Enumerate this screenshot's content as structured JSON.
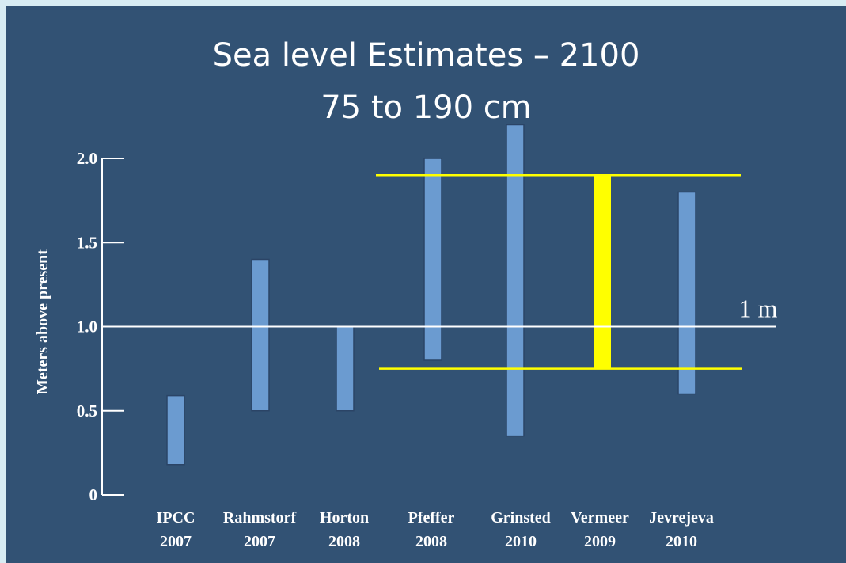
{
  "slide": {
    "title": "Sea level Estimates – 2100",
    "subtitle": "75 to 190 cm"
  },
  "chart_data": {
    "type": "bar",
    "ylabel": "Meters above present",
    "ylim": [
      0,
      2.0
    ],
    "yticks": [
      {
        "value": 0,
        "label": "0"
      },
      {
        "value": 0.5,
        "label": "0.5"
      },
      {
        "value": 1.0,
        "label": "1.0"
      },
      {
        "value": 1.5,
        "label": "1.5"
      },
      {
        "value": 2.0,
        "label": "2.0"
      }
    ],
    "categories": [
      {
        "name": "IPCC",
        "year": "2007"
      },
      {
        "name": "Rahmstorf",
        "year": "2007"
      },
      {
        "name": "Horton",
        "year": "2008"
      },
      {
        "name": "Pfeffer",
        "year": "2008"
      },
      {
        "name": "Grinsted",
        "year": "2010"
      },
      {
        "name": "Vermeer",
        "year": "2009"
      },
      {
        "name": "Jevrejeva",
        "year": "2010"
      }
    ],
    "ranges": [
      {
        "low": 0.18,
        "high": 0.59
      },
      {
        "low": 0.5,
        "high": 1.4
      },
      {
        "low": 0.5,
        "high": 1.0
      },
      {
        "low": 0.8,
        "high": 2.0
      },
      {
        "low": 0.35,
        "high": 2.2
      },
      {
        "low": 0.75,
        "high": 1.9
      },
      {
        "low": 0.6,
        "high": 1.8
      }
    ],
    "highlight_index": 5,
    "reference_line": {
      "value": 1.0,
      "label": "1 m"
    },
    "highlight_lines": [
      1.9,
      0.75
    ],
    "colors": {
      "bar": "#6b9bd0",
      "bar_edge": "#2b4466",
      "highlight": "#ffff00",
      "axis": "#ffffff",
      "background": "#325274",
      "border": "#d8ecf3"
    },
    "grid": false
  }
}
